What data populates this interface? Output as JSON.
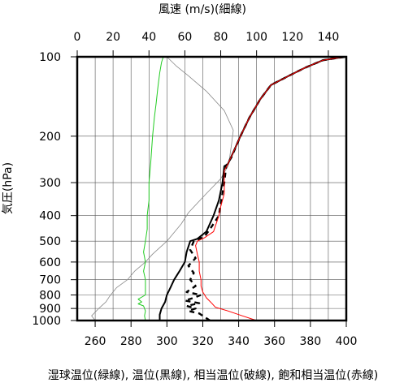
{
  "chart_data": {
    "type": "line",
    "title": "風速 (m/s)(細線)",
    "xlabel": "湿球温位(緑線), 温位(黒線), 相当温位(破線), 飽和相当温位(赤線)",
    "ylabel": "気圧(hPa)",
    "y_scale": "log",
    "y_reversed": true,
    "ylim": [
      1000,
      100
    ],
    "yticks": [
      100,
      200,
      300,
      400,
      500,
      600,
      700,
      800,
      900,
      1000
    ],
    "xlim_temp": [
      250,
      400
    ],
    "xticks_temp": [
      260,
      280,
      300,
      320,
      340,
      360,
      380,
      400
    ],
    "xlim_wind": [
      0,
      150
    ],
    "xticks_wind": [
      0,
      20,
      40,
      60,
      80,
      100,
      120,
      140
    ],
    "grid": true,
    "series": [
      {
        "key": "wind",
        "axis": "wind",
        "style": "thin",
        "color": "#888888",
        "points": [
          [
            10,
            1000
          ],
          [
            8,
            960
          ],
          [
            12,
            900
          ],
          [
            16,
            850
          ],
          [
            18,
            810
          ],
          [
            22,
            750
          ],
          [
            28,
            700
          ],
          [
            32,
            650
          ],
          [
            38,
            600
          ],
          [
            42,
            560
          ],
          [
            50,
            500
          ],
          [
            58,
            430
          ],
          [
            62,
            390
          ],
          [
            72,
            330
          ],
          [
            80,
            290
          ],
          [
            84,
            260
          ],
          [
            85,
            240
          ],
          [
            86,
            215
          ],
          [
            87,
            190
          ],
          [
            82,
            160
          ],
          [
            72,
            135
          ],
          [
            62,
            118
          ],
          [
            55,
            108
          ],
          [
            50,
            100
          ]
        ]
      },
      {
        "key": "wet_bulb_theta",
        "axis": "temp",
        "style": "solid",
        "color": "#22cc22",
        "points": [
          [
            288,
            1000
          ],
          [
            287.5,
            960
          ],
          [
            288,
            920
          ],
          [
            287,
            880
          ],
          [
            284,
            865
          ],
          [
            286,
            850
          ],
          [
            284,
            830
          ],
          [
            288,
            800
          ],
          [
            288,
            750
          ],
          [
            288,
            700
          ],
          [
            287,
            650
          ],
          [
            288,
            600
          ],
          [
            287,
            550
          ],
          [
            288,
            500
          ],
          [
            289,
            450
          ],
          [
            289,
            400
          ],
          [
            290,
            350
          ],
          [
            290,
            300
          ],
          [
            291,
            250
          ],
          [
            292,
            200
          ],
          [
            293,
            170
          ],
          [
            294,
            150
          ],
          [
            295,
            130
          ],
          [
            296,
            115
          ],
          [
            297,
            105
          ],
          [
            298,
            100
          ]
        ]
      },
      {
        "key": "theta",
        "axis": "temp",
        "style": "bold",
        "color": "#000000",
        "points": [
          [
            296,
            1000
          ],
          [
            296,
            950
          ],
          [
            297,
            900
          ],
          [
            299,
            850
          ],
          [
            300,
            800
          ],
          [
            302,
            750
          ],
          [
            304,
            700
          ],
          [
            307,
            650
          ],
          [
            310,
            600
          ],
          [
            311,
            550
          ],
          [
            313,
            500
          ],
          [
            317,
            490
          ],
          [
            322,
            460
          ],
          [
            326,
            400
          ],
          [
            329,
            350
          ],
          [
            331,
            300
          ],
          [
            332,
            260
          ],
          [
            334,
            255
          ],
          [
            337,
            230
          ],
          [
            341,
            200
          ],
          [
            346,
            170
          ],
          [
            352,
            145
          ],
          [
            358,
            128
          ],
          [
            368,
            118
          ],
          [
            377,
            110
          ],
          [
            387,
            103
          ],
          [
            395,
            101
          ],
          [
            400,
            100
          ]
        ]
      },
      {
        "key": "theta_e",
        "axis": "temp",
        "style": "dashed",
        "color": "#000000",
        "points": [
          [
            324,
            1000
          ],
          [
            321,
            970
          ],
          [
            318,
            940
          ],
          [
            312,
            920
          ],
          [
            316,
            900
          ],
          [
            311,
            880
          ],
          [
            318,
            860
          ],
          [
            310,
            840
          ],
          [
            315,
            820
          ],
          [
            319,
            800
          ],
          [
            311,
            780
          ],
          [
            316,
            740
          ],
          [
            313,
            700
          ],
          [
            315,
            660
          ],
          [
            312,
            620
          ],
          [
            316,
            580
          ],
          [
            313,
            540
          ],
          [
            315,
            500
          ],
          [
            321,
            480
          ],
          [
            325,
            440
          ],
          [
            329,
            400
          ],
          [
            330,
            360
          ],
          [
            332,
            300
          ],
          [
            333,
            260
          ],
          [
            336,
            240
          ],
          [
            341,
            200
          ],
          [
            346,
            170
          ],
          [
            352,
            145
          ],
          [
            358,
            128
          ],
          [
            368,
            118
          ],
          [
            377,
            110
          ],
          [
            387,
            103
          ],
          [
            395,
            101
          ],
          [
            400,
            100
          ]
        ]
      },
      {
        "key": "theta_es",
        "axis": "temp",
        "style": "solid",
        "color": "#ff0000",
        "points": [
          [
            350,
            1000
          ],
          [
            342,
            960
          ],
          [
            334,
            920
          ],
          [
            327,
            890
          ],
          [
            325,
            860
          ],
          [
            322,
            820
          ],
          [
            320,
            780
          ],
          [
            319,
            740
          ],
          [
            319,
            700
          ],
          [
            318,
            650
          ],
          [
            318,
            600
          ],
          [
            317,
            560
          ],
          [
            316,
            520
          ],
          [
            317,
            500
          ],
          [
            321,
            485
          ],
          [
            326,
            460
          ],
          [
            329,
            400
          ],
          [
            330,
            370
          ],
          [
            332,
            330
          ],
          [
            332,
            300
          ],
          [
            332,
            270
          ],
          [
            334,
            255
          ],
          [
            337,
            230
          ],
          [
            341,
            200
          ],
          [
            346,
            170
          ],
          [
            352,
            145
          ],
          [
            358,
            128
          ],
          [
            368,
            118
          ],
          [
            377,
            110
          ],
          [
            387,
            103
          ],
          [
            395,
            101
          ],
          [
            400,
            100
          ]
        ]
      }
    ]
  }
}
